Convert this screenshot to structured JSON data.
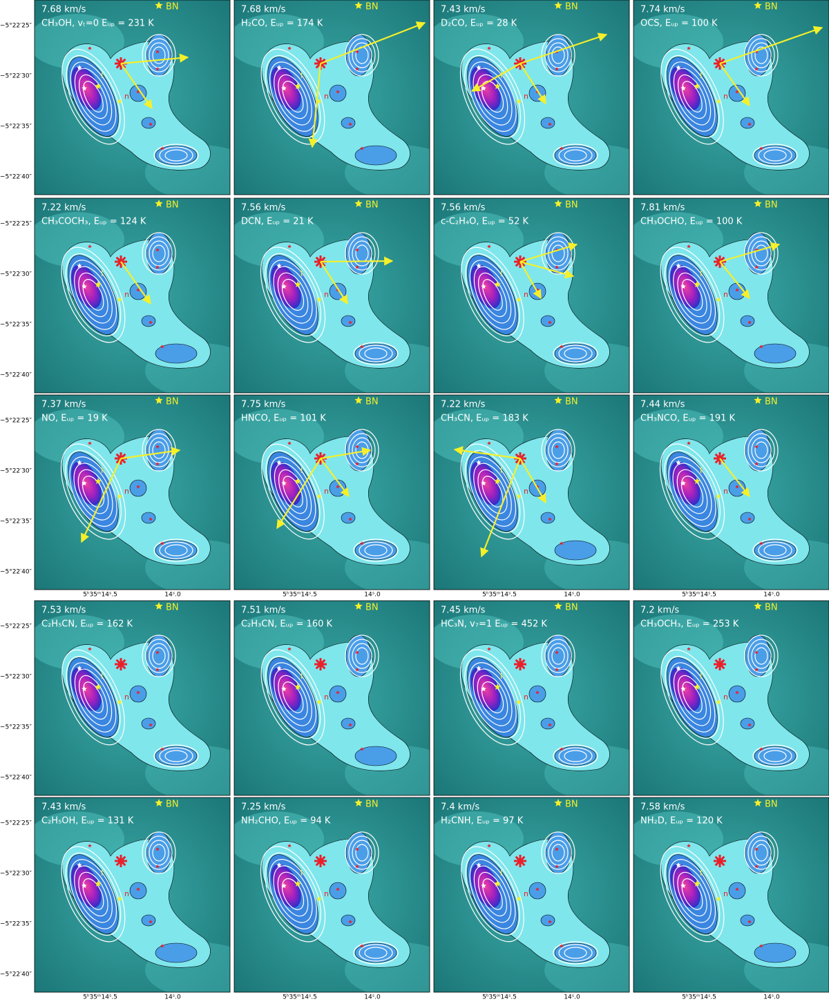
{
  "panels": [
    {
      "velocity": "7.68 km/s",
      "label": "CH₃OH, vₜ=0 Eᵤₚ = 231 K"
    },
    {
      "velocity": "7.68 km/s",
      "label": "H₂CO, Eᵤₚ = 174 K"
    },
    {
      "velocity": "7.43 km/s",
      "label": "D₂CO, Eᵤₚ = 28 K"
    },
    {
      "velocity": "7.74 km/s",
      "label": "OCS, Eᵤₚ = 100 K"
    },
    {
      "velocity": "7.22 km/s",
      "label": "CH₃COCH₃, Eᵤₚ = 124 K"
    },
    {
      "velocity": "7.56 km/s",
      "label": "DCN, Eᵤₚ = 21 K"
    },
    {
      "velocity": "7.56 km/s",
      "label": "c-C₂H₄O, Eᵤₚ = 52 K"
    },
    {
      "velocity": "7.81 km/s",
      "label": "CH₃OCHO, Eᵤₚ = 100 K"
    },
    {
      "velocity": "7.37 km/s",
      "label": "NO, Eᵤₚ = 19 K"
    },
    {
      "velocity": "7.75 km/s",
      "label": "HNCO, Eᵤₚ = 101 K"
    },
    {
      "velocity": "7.22 km/s",
      "label": "CH₃CN, Eᵤₚ = 183 K"
    },
    {
      "velocity": "7.44 km/s",
      "label": "CH₃NCO, Eᵤₚ = 191 K"
    },
    {
      "velocity": "7.53 km/s",
      "label": "C₂H₅CN, Eᵤₚ = 162 K"
    },
    {
      "velocity": "7.51 km/s",
      "label": "C₂H₃CN, Eᵤₚ = 160 K"
    },
    {
      "velocity": "7.45 km/s",
      "label": "HC₃N, v₇=1 Eᵤₚ = 452 K"
    },
    {
      "velocity": "7.2 km/s",
      "label": "CH₃OCH₃, Eᵤₚ = 253 K"
    },
    {
      "velocity": "7.43 km/s",
      "label": "C₂H₅OH, Eᵤₚ = 131 K"
    },
    {
      "velocity": "7.25 km/s",
      "label": "NH₂CHO, Eᵤₚ = 94 K"
    },
    {
      "velocity": "7.4 km/s",
      "label": "H₂CNH, Eᵤₚ = 97 K"
    },
    {
      "velocity": "7.58 km/s",
      "label": "NH₂D, Eᵤₚ = 120 K"
    }
  ],
  "sources": {
    "bn": "BN",
    "i": "I",
    "n": "n"
  },
  "axes": {
    "y_labels": [
      "−5°22′25″",
      "−5°22′30″",
      "−5°22′35″",
      "−5°22′40″"
    ],
    "x_labels": [
      "5ʰ35ᵐ14ˢ.5",
      "14ˢ.0"
    ]
  }
}
